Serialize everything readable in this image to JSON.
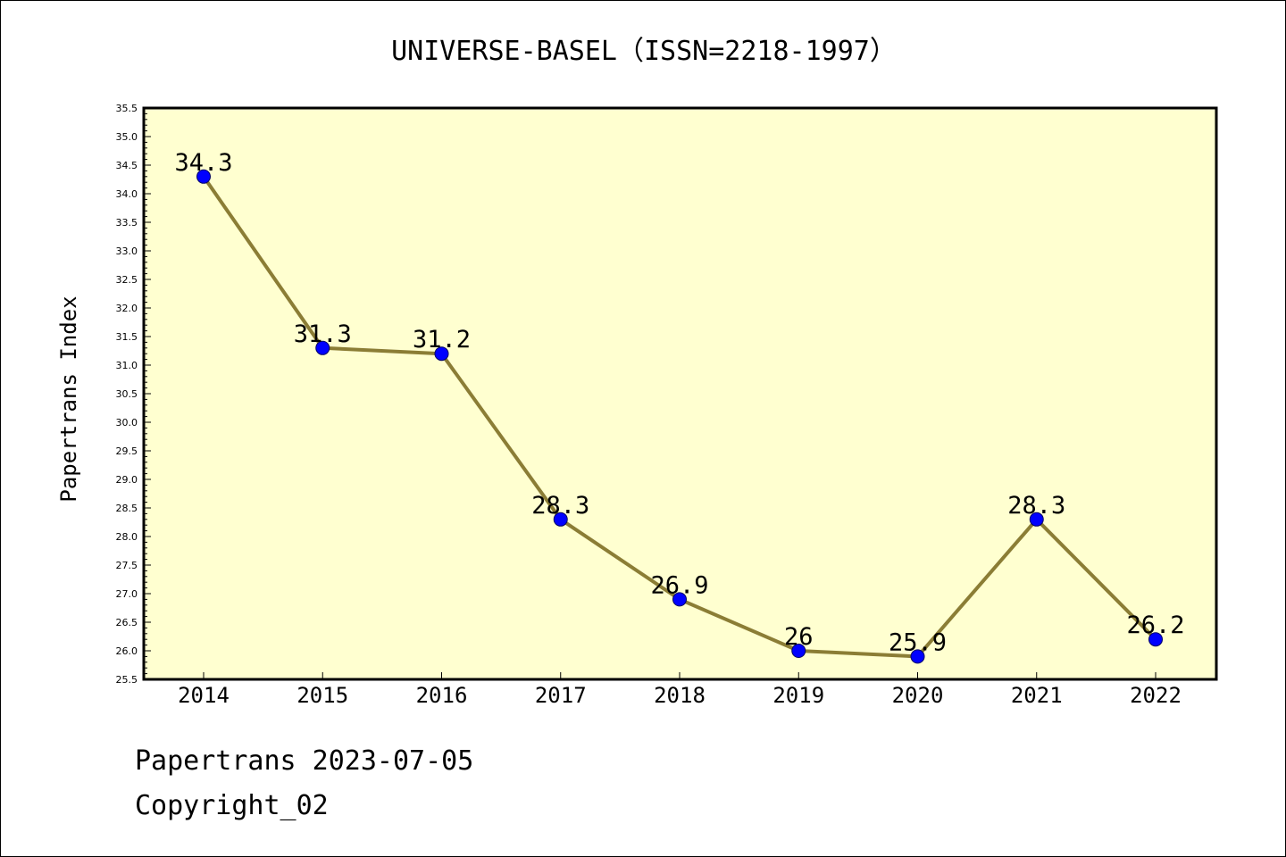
{
  "chart_data": {
    "type": "line",
    "title": "UNIVERSE-BASEL（ISSN=2218-1997）",
    "xlabel": "",
    "ylabel": "Papertrans Index",
    "x": [
      "2014",
      "2015",
      "2016",
      "2017",
      "2018",
      "2019",
      "2020",
      "2021",
      "2022"
    ],
    "series": [
      {
        "values": [
          34.3,
          31.3,
          31.2,
          28.3,
          26.9,
          26.0,
          25.9,
          28.3,
          26.2
        ],
        "labels": [
          "34.3",
          "31.3",
          "31.2",
          "28.3",
          "26.9",
          "26",
          "25.9",
          "28.3",
          "26.2"
        ]
      }
    ],
    "ylim": [
      25.5,
      35.5
    ],
    "yticks": [
      "25.5",
      "26.0",
      "26.5",
      "27.0",
      "27.5",
      "28.0",
      "28.5",
      "29.0",
      "29.5",
      "30.0",
      "30.5",
      "31.0",
      "31.5",
      "32.0",
      "32.5",
      "33.0",
      "33.5",
      "34.0",
      "34.5",
      "35.0",
      "35.5"
    ],
    "grid": false,
    "legend": "none",
    "colors": {
      "plot_background": "#ffffd0",
      "line": "#8b7d35",
      "marker": "#0000ff"
    }
  },
  "footer": {
    "date_line": "Papertrans 2023-07-05",
    "copyright_line": "Copyright_02"
  }
}
